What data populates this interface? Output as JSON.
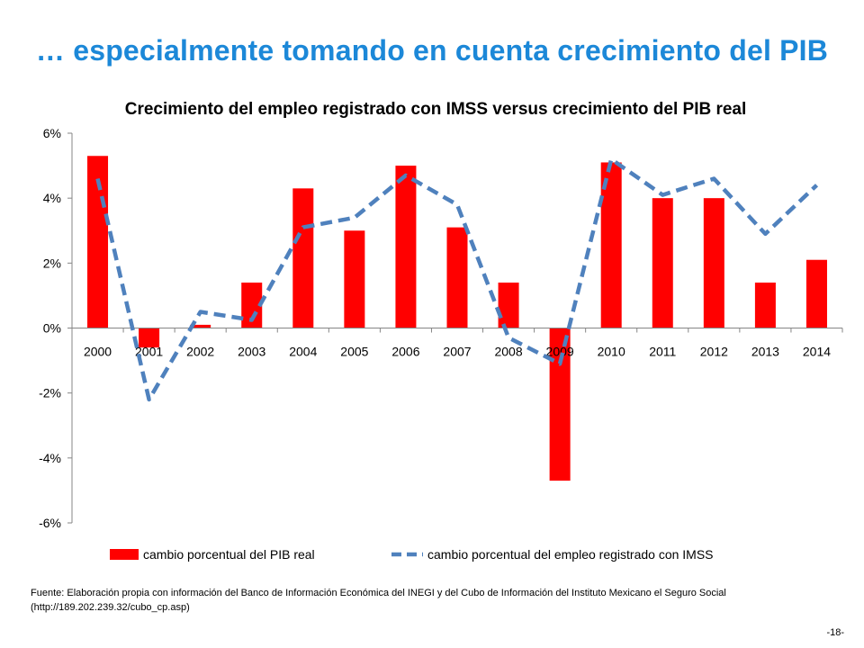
{
  "slide": {
    "title": "… especialmente tomando en cuenta crecimiento del PIB",
    "source": "Fuente: Elaboración propia con información del Banco de Información Económica del INEGI y del Cubo de Información del Instituto Mexicano el Seguro Social (http://189.202.239.32/cubo_cp.asp)",
    "page_number": "-18-"
  },
  "chart_data": {
    "type": "bar",
    "title": "Crecimiento del empleo registrado con IMSS versus crecimiento del PIB real",
    "xlabel": "",
    "ylabel": "",
    "categories": [
      "2000",
      "2001",
      "2002",
      "2003",
      "2004",
      "2005",
      "2006",
      "2007",
      "2008",
      "2009",
      "2010",
      "2011",
      "2012",
      "2013",
      "2014"
    ],
    "yticks": [
      "6%",
      "4%",
      "2%",
      "0%",
      "-2%",
      "-4%",
      "-6%"
    ],
    "ylim": [
      -6,
      6
    ],
    "grid": false,
    "legend_position": "bottom",
    "series": [
      {
        "name": "cambio porcentual del PIB real",
        "type": "bar",
        "color": "#ff0000",
        "values": [
          5.3,
          -0.6,
          0.1,
          1.4,
          4.3,
          3.0,
          5.0,
          3.1,
          1.4,
          -4.7,
          5.1,
          4.0,
          4.0,
          1.4,
          2.1
        ]
      },
      {
        "name": "cambio porcentual del empleo registrado con IMSS",
        "type": "line",
        "style": "dashed",
        "color": "#4f81bd",
        "values": [
          4.6,
          -2.2,
          0.5,
          0.25,
          3.1,
          3.4,
          4.7,
          3.8,
          -0.3,
          -1.1,
          5.2,
          4.1,
          4.6,
          2.9,
          4.4
        ]
      }
    ]
  }
}
